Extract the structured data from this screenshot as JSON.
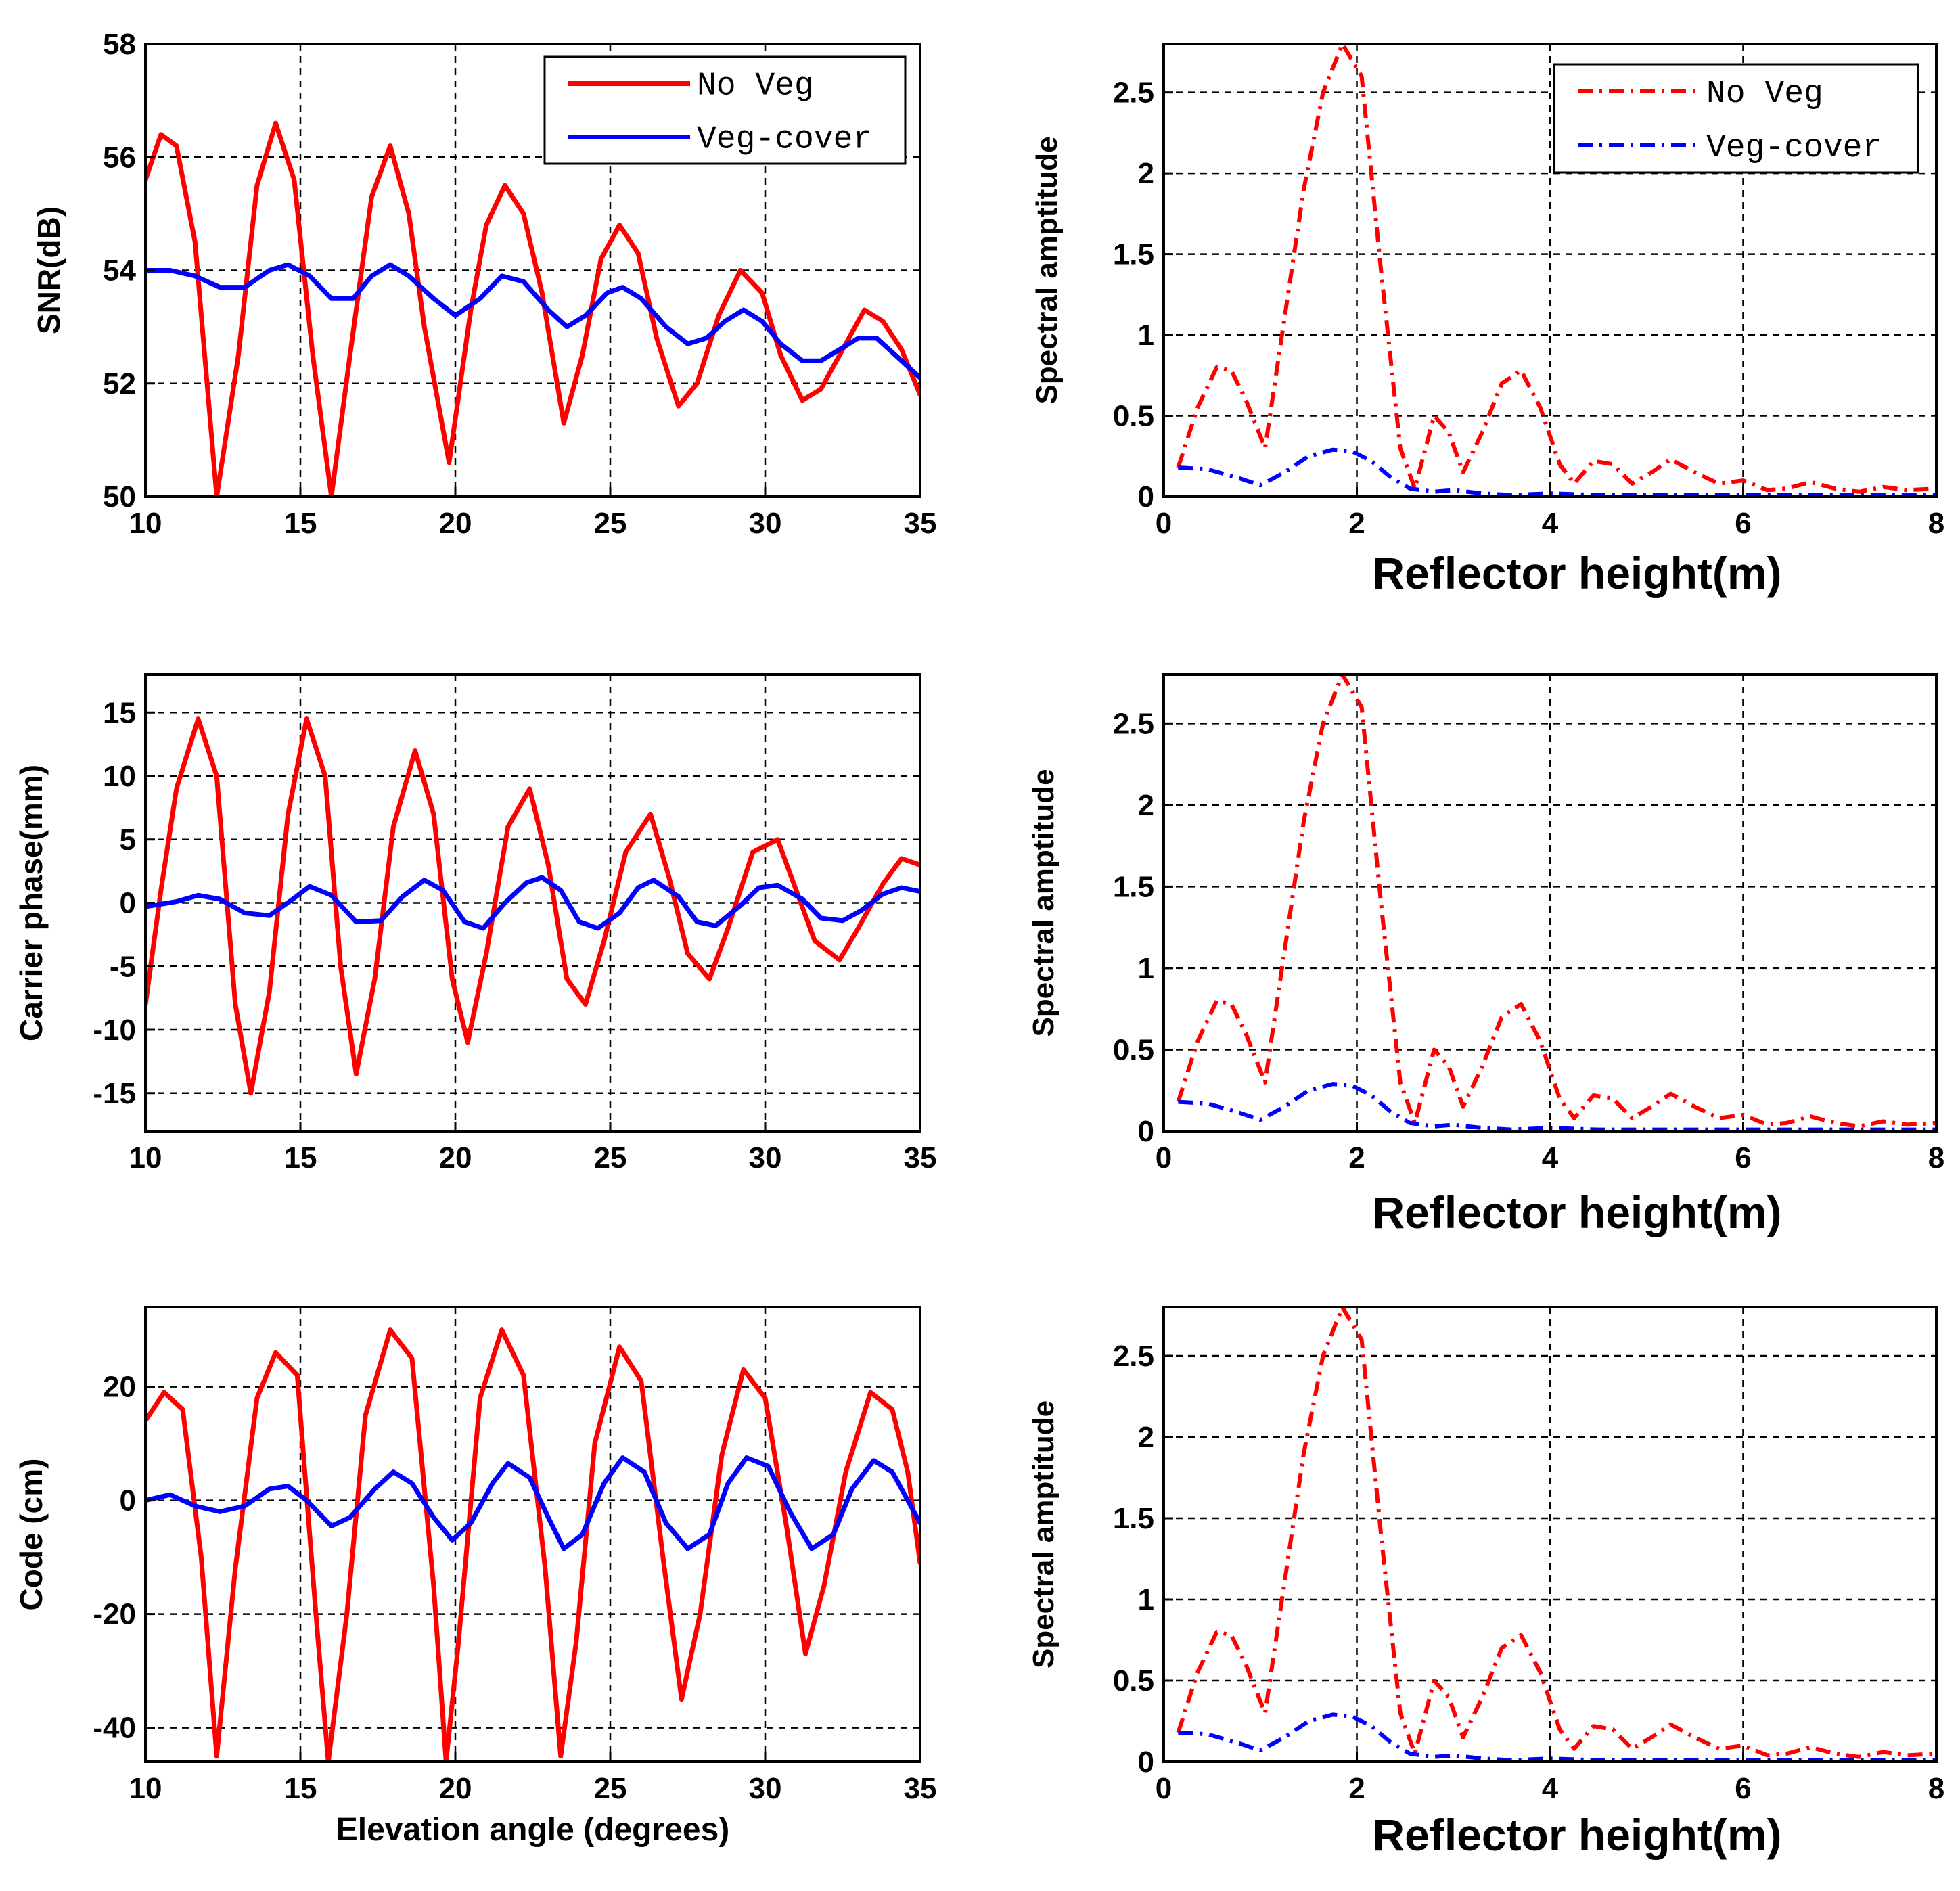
{
  "colors": {
    "no_veg": "#ff0000",
    "veg_cover": "#0000ff",
    "grid": "#000000",
    "frame": "#000000"
  },
  "chart_data": [
    {
      "id": "snr",
      "type": "line",
      "xlabel": "",
      "ylabel": "SNR(dB)",
      "xlim": [
        10,
        35
      ],
      "ylim": [
        50,
        58
      ],
      "xticks": [
        10,
        15,
        20,
        25,
        30,
        35
      ],
      "yticks": [
        50,
        52,
        54,
        56,
        58
      ],
      "legend": {
        "position": "top-right",
        "style": "solid",
        "entries": [
          "No Veg",
          "Veg-cover"
        ]
      },
      "series": [
        {
          "name": "No Veg",
          "style": "solid",
          "x": [
            10,
            10.5,
            11,
            11.6,
            12.3,
            13,
            13.6,
            14.2,
            14.8,
            15.4,
            16,
            16.6,
            17.3,
            17.9,
            18.5,
            19,
            19.8,
            20.5,
            21,
            21.6,
            22.2,
            22.8,
            23.5,
            24.1,
            24.7,
            25.3,
            25.9,
            26.5,
            27.2,
            27.8,
            28.5,
            29.2,
            29.9,
            30.5,
            31.2,
            31.8,
            32.5,
            33.2,
            33.8,
            34.4,
            35
          ],
          "y": [
            55.6,
            56.4,
            56.2,
            54.5,
            50.0,
            52.5,
            55.5,
            56.6,
            55.6,
            52.5,
            50.0,
            52.5,
            55.3,
            56.2,
            55.0,
            53.0,
            50.6,
            53.3,
            54.8,
            55.5,
            55.0,
            53.6,
            51.3,
            52.5,
            54.2,
            54.8,
            54.3,
            52.8,
            51.6,
            52.0,
            53.2,
            54.0,
            53.6,
            52.5,
            51.7,
            51.9,
            52.6,
            53.3,
            53.1,
            52.6,
            51.8
          ]
        },
        {
          "name": "Veg-cover",
          "style": "solid",
          "x": [
            10,
            10.8,
            11.6,
            12.4,
            13.2,
            14,
            14.6,
            15.3,
            16,
            16.7,
            17.3,
            17.9,
            18.5,
            19.3,
            20,
            20.8,
            21.5,
            22.2,
            23,
            23.6,
            24.2,
            24.9,
            25.4,
            26,
            26.8,
            27.5,
            28.1,
            28.7,
            29.3,
            29.9,
            30.5,
            31.2,
            31.8,
            32.4,
            33,
            33.6,
            34.2,
            35
          ],
          "y": [
            54.0,
            54.0,
            53.9,
            53.7,
            53.7,
            54.0,
            54.1,
            53.9,
            53.5,
            53.5,
            53.9,
            54.1,
            53.9,
            53.5,
            53.2,
            53.5,
            53.9,
            53.8,
            53.3,
            53.0,
            53.2,
            53.6,
            53.7,
            53.5,
            53.0,
            52.7,
            52.8,
            53.1,
            53.3,
            53.1,
            52.7,
            52.4,
            52.4,
            52.6,
            52.8,
            52.8,
            52.5,
            52.1
          ]
        }
      ]
    },
    {
      "id": "phase",
      "type": "line",
      "xlabel": "",
      "ylabel": "Carrier phase(mm)",
      "xlim": [
        10,
        35
      ],
      "ylim": [
        -18,
        18
      ],
      "xticks": [
        10,
        15,
        20,
        25,
        30,
        35
      ],
      "yticks": [
        -15,
        -10,
        -5,
        0,
        5,
        10,
        15
      ],
      "series": [
        {
          "name": "No Veg",
          "style": "solid",
          "x": [
            10,
            10.5,
            11,
            11.7,
            12.3,
            12.9,
            13.4,
            14,
            14.6,
            15.2,
            15.8,
            16.3,
            16.8,
            17.4,
            18,
            18.7,
            19.3,
            19.9,
            20.4,
            21,
            21.7,
            22.4,
            23,
            23.6,
            24.2,
            24.8,
            25.5,
            26.3,
            26.9,
            27.5,
            28.2,
            28.8,
            29.6,
            30.4,
            31,
            31.6,
            32.4,
            33,
            33.8,
            34.4,
            35
          ],
          "y": [
            -8,
            1,
            9,
            14.5,
            10,
            -8,
            -15,
            -7,
            7,
            14.5,
            10,
            -5,
            -13.5,
            -6,
            6,
            12,
            7,
            -6,
            -11,
            -4,
            6,
            9,
            3,
            -6,
            -8,
            -3,
            4,
            7,
            2,
            -4,
            -6,
            -2,
            4,
            5,
            1,
            -3,
            -4.5,
            -2,
            1.5,
            3.5,
            3
          ]
        },
        {
          "name": "Veg-cover",
          "style": "solid",
          "x": [
            10,
            11,
            11.7,
            12.4,
            13.2,
            14,
            14.7,
            15.3,
            16,
            16.8,
            17.6,
            18.3,
            19,
            19.6,
            20.3,
            20.9,
            21.6,
            22.3,
            22.8,
            23.4,
            24,
            24.6,
            25.3,
            25.9,
            26.4,
            27.2,
            27.8,
            28.4,
            29.2,
            29.8,
            30.4,
            31.2,
            31.8,
            32.5,
            33.1,
            33.8,
            34.4,
            35
          ],
          "y": [
            -0.3,
            0.1,
            0.6,
            0.3,
            -0.8,
            -1.0,
            0.2,
            1.3,
            0.6,
            -1.5,
            -1.4,
            0.5,
            1.8,
            1.0,
            -1.5,
            -2.0,
            0.0,
            1.6,
            2.0,
            1.0,
            -1.5,
            -2.0,
            -0.8,
            1.2,
            1.8,
            0.5,
            -1.5,
            -1.8,
            -0.2,
            1.2,
            1.4,
            0.3,
            -1.2,
            -1.4,
            -0.6,
            0.7,
            1.2,
            0.9
          ]
        }
      ]
    },
    {
      "id": "code",
      "type": "line",
      "xlabel": "Elevation angle (degrees)",
      "ylabel": "Code (cm)",
      "xlim": [
        10,
        35
      ],
      "ylim": [
        -46,
        34
      ],
      "xticks": [
        10,
        15,
        20,
        25,
        30,
        35
      ],
      "yticks": [
        -40,
        -20,
        0,
        20
      ],
      "series": [
        {
          "name": "No Veg",
          "style": "solid",
          "x": [
            10,
            10.6,
            11.2,
            11.8,
            12.3,
            12.9,
            13.6,
            14.2,
            14.9,
            15.5,
            15.9,
            16.5,
            17.1,
            17.9,
            18.6,
            19.3,
            19.7,
            20.1,
            20.8,
            21.5,
            22.2,
            22.9,
            23.4,
            23.9,
            24.5,
            25.3,
            26,
            26.7,
            27.3,
            27.9,
            28.6,
            29.3,
            30,
            30.7,
            31.3,
            31.9,
            32.6,
            33.4,
            34.1,
            34.6,
            35
          ],
          "y": [
            14,
            19,
            16,
            -10,
            -45,
            -12,
            18,
            26,
            22,
            -20,
            -46,
            -20,
            15,
            30,
            25,
            -15,
            -46,
            -25,
            18,
            30,
            22,
            -12,
            -45,
            -25,
            10,
            27,
            21,
            -10,
            -35,
            -20,
            8,
            23,
            18,
            -5,
            -27,
            -15,
            5,
            19,
            16,
            5,
            -11
          ]
        },
        {
          "name": "Veg-cover",
          "style": "solid",
          "x": [
            10,
            10.8,
            11.6,
            12.4,
            13.2,
            14,
            14.6,
            15.2,
            16,
            16.6,
            17.4,
            18,
            18.6,
            19.3,
            19.9,
            20.5,
            21.2,
            21.7,
            22.4,
            23,
            23.5,
            24.1,
            24.8,
            25.4,
            26.1,
            26.8,
            27.5,
            28.2,
            28.8,
            29.4,
            30.1,
            30.8,
            31.5,
            32.2,
            32.8,
            33.5,
            34.1,
            34.6,
            35
          ],
          "y": [
            0,
            1,
            -1,
            -2,
            -1,
            2,
            2.5,
            0,
            -4.5,
            -3,
            2,
            5,
            3,
            -3,
            -7,
            -4,
            3,
            6.5,
            4,
            -3,
            -8.5,
            -6,
            3,
            7.5,
            5,
            -4,
            -8.5,
            -6,
            3,
            7.5,
            6,
            -2,
            -8.5,
            -6,
            2,
            7,
            5,
            0,
            -4
          ]
        }
      ]
    },
    {
      "id": "spectrum-1",
      "type": "line",
      "xlabel": "Reflector height(m)",
      "ylabel": "Spectral amptitude",
      "xlim": [
        0,
        8
      ],
      "ylim": [
        0,
        2.8
      ],
      "xticks": [
        0,
        2,
        4,
        6,
        8
      ],
      "yticks": [
        0,
        0.5,
        1,
        1.5,
        2,
        2.5
      ],
      "yticklabels": [
        "0",
        "0.5",
        "1",
        "1.5",
        "2",
        "2.5"
      ],
      "legend": {
        "position": "top-right",
        "style": "dashdot",
        "entries": [
          "No Veg",
          "Veg-cover"
        ]
      },
      "series": [
        {
          "name": "No Veg",
          "style": "dashdot",
          "x": [
            0.15,
            0.35,
            0.55,
            0.7,
            0.85,
            1.05,
            1.25,
            1.45,
            1.65,
            1.85,
            2.05,
            2.25,
            2.45,
            2.6,
            2.8,
            2.95,
            3.1,
            3.3,
            3.5,
            3.7,
            3.9,
            4.1,
            4.25,
            4.45,
            4.65,
            4.85,
            5.05,
            5.25,
            5.5,
            5.75,
            6.0,
            6.25,
            6.45,
            6.7,
            6.95,
            7.2,
            7.45,
            7.7,
            8.0
          ],
          "y": [
            0.18,
            0.55,
            0.8,
            0.78,
            0.6,
            0.3,
            1.1,
            1.9,
            2.5,
            2.8,
            2.6,
            1.4,
            0.3,
            0.05,
            0.5,
            0.4,
            0.15,
            0.4,
            0.7,
            0.78,
            0.55,
            0.2,
            0.08,
            0.22,
            0.2,
            0.08,
            0.15,
            0.23,
            0.15,
            0.08,
            0.1,
            0.04,
            0.05,
            0.09,
            0.05,
            0.03,
            0.06,
            0.04,
            0.05
          ]
        },
        {
          "name": "Veg-cover",
          "style": "dashdot",
          "x": [
            0.15,
            0.45,
            0.75,
            1.0,
            1.25,
            1.5,
            1.75,
            1.95,
            2.15,
            2.35,
            2.55,
            2.8,
            3.0,
            3.3,
            3.6,
            4.0,
            4.5,
            5.0,
            5.5,
            6.0,
            6.5,
            7.0,
            7.5,
            8.0
          ],
          "y": [
            0.18,
            0.17,
            0.12,
            0.07,
            0.15,
            0.25,
            0.29,
            0.28,
            0.22,
            0.12,
            0.05,
            0.03,
            0.04,
            0.02,
            0.01,
            0.02,
            0.01,
            0.01,
            0.01,
            0.01,
            0.01,
            0.01,
            0.01,
            0.01
          ]
        }
      ]
    },
    {
      "id": "spectrum-2",
      "type": "line",
      "xlabel": "Reflector height(m)",
      "ylabel": "Spectral amptitude",
      "xlim": [
        0,
        8
      ],
      "ylim": [
        0,
        2.8
      ],
      "xticks": [
        0,
        2,
        4,
        6,
        8
      ],
      "yticks": [
        0,
        0.5,
        1,
        1.5,
        2,
        2.5
      ],
      "yticklabels": [
        "0",
        "0.5",
        "1",
        "1.5",
        "2",
        "2.5"
      ],
      "series": [
        {
          "name": "No Veg",
          "style": "dashdot",
          "x": [
            0.15,
            0.35,
            0.55,
            0.7,
            0.85,
            1.05,
            1.25,
            1.45,
            1.65,
            1.85,
            2.05,
            2.25,
            2.45,
            2.6,
            2.8,
            2.95,
            3.1,
            3.3,
            3.5,
            3.7,
            3.9,
            4.1,
            4.25,
            4.45,
            4.65,
            4.85,
            5.05,
            5.25,
            5.5,
            5.75,
            6.0,
            6.25,
            6.45,
            6.7,
            6.95,
            7.2,
            7.45,
            7.7,
            8.0
          ],
          "y": [
            0.18,
            0.55,
            0.8,
            0.78,
            0.6,
            0.3,
            1.1,
            1.9,
            2.5,
            2.8,
            2.6,
            1.4,
            0.3,
            0.05,
            0.5,
            0.4,
            0.15,
            0.4,
            0.7,
            0.78,
            0.55,
            0.2,
            0.08,
            0.22,
            0.2,
            0.08,
            0.15,
            0.23,
            0.15,
            0.08,
            0.1,
            0.04,
            0.05,
            0.09,
            0.05,
            0.03,
            0.06,
            0.04,
            0.05
          ]
        },
        {
          "name": "Veg-cover",
          "style": "dashdot",
          "x": [
            0.15,
            0.45,
            0.75,
            1.0,
            1.25,
            1.5,
            1.75,
            1.95,
            2.15,
            2.35,
            2.55,
            2.8,
            3.0,
            3.3,
            3.6,
            4.0,
            4.5,
            5.0,
            5.5,
            6.0,
            6.5,
            7.0,
            7.5,
            8.0
          ],
          "y": [
            0.18,
            0.17,
            0.12,
            0.07,
            0.15,
            0.25,
            0.29,
            0.28,
            0.22,
            0.12,
            0.05,
            0.03,
            0.04,
            0.02,
            0.01,
            0.02,
            0.01,
            0.01,
            0.01,
            0.01,
            0.01,
            0.01,
            0.01,
            0.01
          ]
        }
      ]
    },
    {
      "id": "spectrum-3",
      "type": "line",
      "xlabel": "Reflector height(m)",
      "ylabel": "Spectral amptitude",
      "xlim": [
        0,
        8
      ],
      "ylim": [
        0,
        2.8
      ],
      "xticks": [
        0,
        2,
        4,
        6,
        8
      ],
      "yticks": [
        0,
        0.5,
        1,
        1.5,
        2,
        2.5
      ],
      "yticklabels": [
        "0",
        "0.5",
        "1",
        "1.5",
        "2",
        "2.5"
      ],
      "series": [
        {
          "name": "No Veg",
          "style": "dashdot",
          "x": [
            0.15,
            0.35,
            0.55,
            0.7,
            0.85,
            1.05,
            1.25,
            1.45,
            1.65,
            1.85,
            2.05,
            2.25,
            2.45,
            2.6,
            2.8,
            2.95,
            3.1,
            3.3,
            3.5,
            3.7,
            3.9,
            4.1,
            4.25,
            4.45,
            4.65,
            4.85,
            5.05,
            5.25,
            5.5,
            5.75,
            6.0,
            6.25,
            6.45,
            6.7,
            6.95,
            7.2,
            7.45,
            7.7,
            8.0
          ],
          "y": [
            0.18,
            0.55,
            0.8,
            0.78,
            0.6,
            0.3,
            1.1,
            1.9,
            2.5,
            2.8,
            2.6,
            1.4,
            0.3,
            0.05,
            0.5,
            0.4,
            0.15,
            0.4,
            0.7,
            0.78,
            0.55,
            0.2,
            0.08,
            0.22,
            0.2,
            0.08,
            0.15,
            0.23,
            0.15,
            0.08,
            0.1,
            0.04,
            0.05,
            0.09,
            0.05,
            0.03,
            0.06,
            0.04,
            0.05
          ]
        },
        {
          "name": "Veg-cover",
          "style": "dashdot",
          "x": [
            0.15,
            0.45,
            0.75,
            1.0,
            1.25,
            1.5,
            1.75,
            1.95,
            2.15,
            2.35,
            2.55,
            2.8,
            3.0,
            3.3,
            3.6,
            4.0,
            4.5,
            5.0,
            5.5,
            6.0,
            6.5,
            7.0,
            7.5,
            8.0
          ],
          "y": [
            0.18,
            0.17,
            0.12,
            0.07,
            0.15,
            0.25,
            0.29,
            0.28,
            0.22,
            0.12,
            0.05,
            0.03,
            0.04,
            0.02,
            0.01,
            0.02,
            0.01,
            0.01,
            0.01,
            0.01,
            0.01,
            0.01,
            0.01,
            0.01
          ]
        }
      ]
    }
  ]
}
